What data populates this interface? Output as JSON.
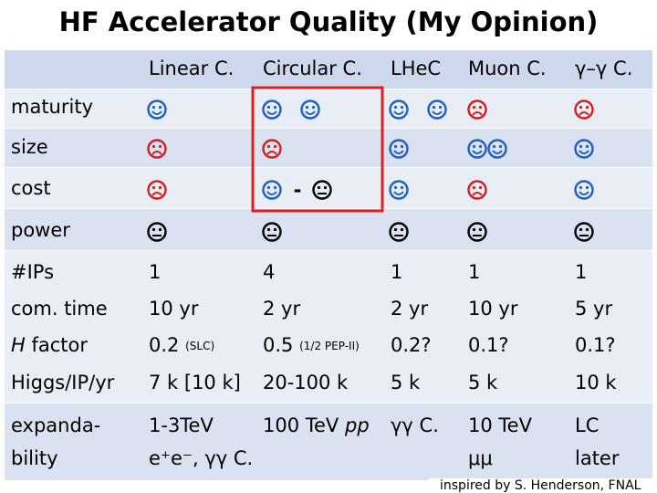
{
  "header": {
    "title": "HF Accelerator Quality (My Opinion)"
  },
  "table": {
    "columns": [
      "Linear C.",
      "Circular C.",
      "LHeC",
      "Muon C.",
      "γ–γ C."
    ],
    "rating_rows": [
      {
        "label": "maturity"
      },
      {
        "label": "size"
      },
      {
        "label": "cost",
        "dash": "-"
      },
      {
        "label": "power"
      }
    ],
    "value_rows": [
      {
        "label": "#IPs",
        "cells": [
          "1",
          "4",
          "1",
          "1",
          "1"
        ]
      },
      {
        "label": "com. time",
        "cells": [
          "10 yr",
          "2 yr",
          "2 yr",
          "10 yr",
          "5 yr"
        ]
      },
      {
        "label_em": "H",
        "label": "factor",
        "cells": [
          {
            "text": "0.2",
            "note": "(SLC)"
          },
          {
            "text": "0.5",
            "note": "(1/2 PEP-II)"
          },
          {
            "text": "0.2?"
          },
          {
            "text": "0.1?"
          },
          {
            "text": "0.1?"
          }
        ]
      },
      {
        "label": "Higgs/IP/yr",
        "cells": [
          "7 k [10 k]",
          "20-100 k",
          "5 k",
          "5 k",
          "10 k"
        ]
      }
    ],
    "expandability": {
      "label": [
        "expanda-",
        "bility"
      ],
      "cells": [
        [
          "1-3TeV",
          "e⁺e⁻, γγ C."
        ],
        {
          "text": "100 TeV ",
          "em": "pp"
        },
        [
          "γγ C."
        ],
        [
          "10 TeV",
          "μμ"
        ],
        [
          "LC",
          "later"
        ]
      ]
    }
  },
  "footer": {
    "credit": "inspired by S. Henderson, FNAL"
  }
}
